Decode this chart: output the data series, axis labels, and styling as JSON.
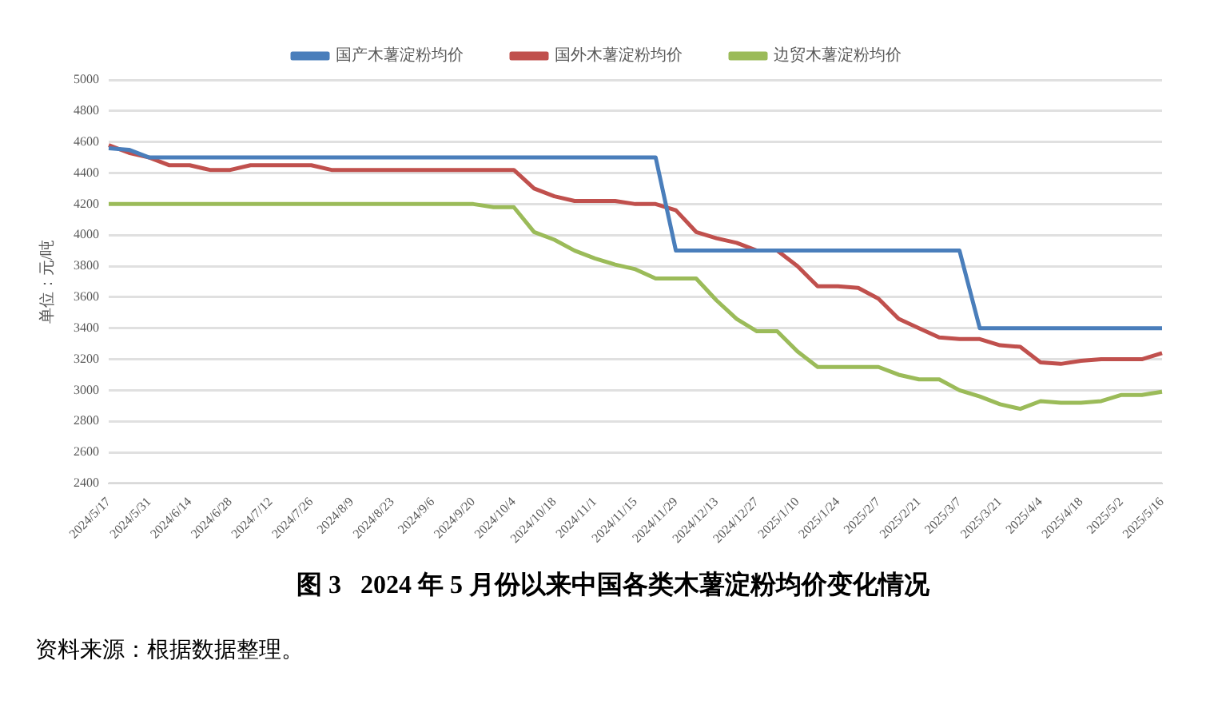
{
  "chart_data": {
    "type": "line",
    "title": "图 3   2024 年 5 月份以来中国各类木薯淀粉均价变化情况",
    "ylabel": "单位：元/吨",
    "annotations": [
      "资料来源：根据数据整理。"
    ],
    "categories": [
      "2024/5/17",
      null,
      "2024/5/31",
      null,
      "2024/6/14",
      null,
      "2024/6/28",
      null,
      "2024/7/12",
      null,
      "2024/7/26",
      null,
      "2024/8/9",
      null,
      "2024/8/23",
      null,
      "2024/9/6",
      null,
      "2024/9/20",
      null,
      "2024/10/4",
      null,
      "2024/10/18",
      null,
      "2024/11/1",
      null,
      "2024/11/15",
      null,
      "2024/11/29",
      null,
      "2024/12/13",
      null,
      "2024/12/27",
      null,
      "2025/1/10",
      null,
      "2025/1/24",
      null,
      "2025/2/7",
      null,
      "2025/2/21",
      null,
      "2025/3/7",
      null,
      "2025/3/21",
      null,
      "2025/4/4",
      null,
      "2025/4/18",
      null,
      "2025/5/2",
      null,
      "2025/5/16"
    ],
    "series": [
      {
        "name": "国产木薯淀粉均价",
        "color": "#4a7ebb",
        "values": [
          4560,
          4550,
          4500,
          4500,
          4500,
          4500,
          4500,
          4500,
          4500,
          4500,
          4500,
          4500,
          4500,
          4500,
          4500,
          4500,
          4500,
          4500,
          4500,
          4500,
          4500,
          4500,
          4500,
          4500,
          4500,
          4500,
          4500,
          4500,
          3900,
          3900,
          3900,
          3900,
          3900,
          3900,
          3900,
          3900,
          3900,
          3900,
          3900,
          3900,
          3900,
          3900,
          3900,
          3400,
          3400,
          3400,
          3400,
          3400,
          3400,
          3400,
          3400,
          3400,
          3400
        ]
      },
      {
        "name": "国外木薯淀粉均价",
        "color": "#c0504d",
        "values": [
          4580,
          4530,
          4500,
          4450,
          4450,
          4420,
          4420,
          4450,
          4450,
          4450,
          4450,
          4420,
          4420,
          4420,
          4420,
          4420,
          4420,
          4420,
          4420,
          4420,
          4420,
          4300,
          4250,
          4220,
          4220,
          4220,
          4200,
          4200,
          4160,
          4020,
          3980,
          3950,
          3900,
          3900,
          3800,
          3670,
          3670,
          3660,
          3590,
          3460,
          3400,
          3340,
          3330,
          3330,
          3290,
          3280,
          3180,
          3170,
          3190,
          3200,
          3200,
          3200,
          3240
        ]
      },
      {
        "name": "边贸木薯淀粉均价",
        "color": "#9bbb59",
        "values": [
          4200,
          4200,
          4200,
          4200,
          4200,
          4200,
          4200,
          4200,
          4200,
          4200,
          4200,
          4200,
          4200,
          4200,
          4200,
          4200,
          4200,
          4200,
          4200,
          4180,
          4180,
          4020,
          3970,
          3900,
          3850,
          3810,
          3780,
          3720,
          3720,
          3720,
          3580,
          3460,
          3380,
          3380,
          3250,
          3150,
          3150,
          3150,
          3150,
          3100,
          3070,
          3070,
          3000,
          2960,
          2910,
          2880,
          2930,
          2920,
          2920,
          2930,
          2970,
          2970,
          2990
        ]
      }
    ],
    "ylim": [
      2400,
      5000
    ],
    "yticks": [
      2400,
      2600,
      2800,
      3000,
      3200,
      3400,
      3600,
      3800,
      4000,
      4200,
      4400,
      4600,
      4800,
      5000
    ],
    "grid": "y",
    "legend": "top",
    "marker": "none",
    "line_style": "solid"
  }
}
